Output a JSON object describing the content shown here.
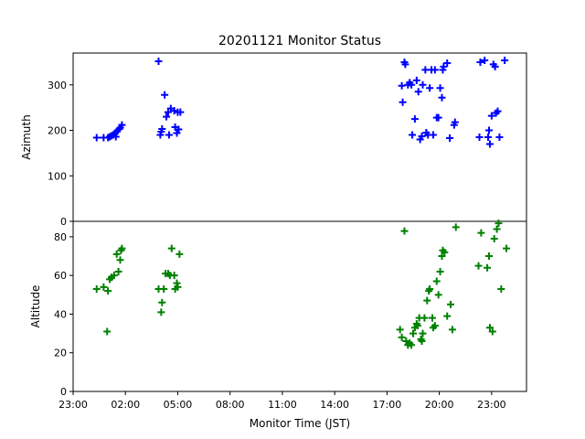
{
  "chart_data": {
    "type": "scatter",
    "title": "20201121 Monitor Status",
    "xlabel": "Monitor Time (JST)",
    "x_unit": "hours since 23:00",
    "xlim": [
      0,
      26
    ],
    "x_ticks": [
      {
        "value": 0,
        "label": "23:00"
      },
      {
        "value": 3,
        "label": "02:00"
      },
      {
        "value": 6,
        "label": "05:00"
      },
      {
        "value": 9,
        "label": "08:00"
      },
      {
        "value": 12,
        "label": "11:00"
      },
      {
        "value": 15,
        "label": "14:00"
      },
      {
        "value": 18,
        "label": "17:00"
      },
      {
        "value": 21,
        "label": "20:00"
      },
      {
        "value": 24,
        "label": "23:00"
      }
    ],
    "panels": [
      {
        "name": "azimuth",
        "ylabel": "Azimuth",
        "ylim": [
          0,
          370
        ],
        "y_ticks": [
          0,
          100,
          200,
          300
        ],
        "marker": "+",
        "color": "#0000ff",
        "points": [
          [
            1.35,
            184
          ],
          [
            1.75,
            184
          ],
          [
            2.0,
            184
          ],
          [
            2.1,
            186
          ],
          [
            2.2,
            188
          ],
          [
            2.3,
            190
          ],
          [
            2.4,
            193
          ],
          [
            2.45,
            186
          ],
          [
            2.5,
            197
          ],
          [
            2.55,
            200
          ],
          [
            2.65,
            203
          ],
          [
            2.7,
            206
          ],
          [
            2.8,
            212
          ],
          [
            4.9,
            352
          ],
          [
            5.0,
            190
          ],
          [
            5.05,
            197
          ],
          [
            5.1,
            203
          ],
          [
            5.25,
            278
          ],
          [
            5.35,
            230
          ],
          [
            5.45,
            240
          ],
          [
            5.5,
            190
          ],
          [
            5.6,
            248
          ],
          [
            5.8,
            243
          ],
          [
            5.85,
            207
          ],
          [
            5.95,
            194
          ],
          [
            6.0,
            240
          ],
          [
            6.05,
            202
          ],
          [
            6.15,
            240
          ],
          [
            18.85,
            298
          ],
          [
            18.9,
            262
          ],
          [
            19.0,
            350
          ],
          [
            19.05,
            345
          ],
          [
            19.2,
            300
          ],
          [
            19.3,
            305
          ],
          [
            19.4,
            300
          ],
          [
            19.45,
            190
          ],
          [
            19.6,
            225
          ],
          [
            19.7,
            310
          ],
          [
            19.8,
            285
          ],
          [
            19.9,
            180
          ],
          [
            20.0,
            187
          ],
          [
            20.05,
            300
          ],
          [
            20.2,
            333
          ],
          [
            20.25,
            195
          ],
          [
            20.35,
            190
          ],
          [
            20.45,
            293
          ],
          [
            20.55,
            333
          ],
          [
            20.65,
            190
          ],
          [
            20.75,
            333
          ],
          [
            20.85,
            228
          ],
          [
            20.95,
            228
          ],
          [
            21.05,
            293
          ],
          [
            21.15,
            272
          ],
          [
            21.2,
            333
          ],
          [
            21.25,
            340
          ],
          [
            21.45,
            348
          ],
          [
            21.6,
            183
          ],
          [
            21.85,
            212
          ],
          [
            21.9,
            218
          ],
          [
            23.3,
            185
          ],
          [
            23.35,
            350
          ],
          [
            23.6,
            354
          ],
          [
            23.8,
            185
          ],
          [
            23.85,
            200
          ],
          [
            23.9,
            170
          ],
          [
            24.0,
            232
          ],
          [
            24.1,
            345
          ],
          [
            24.2,
            340
          ],
          [
            24.25,
            238
          ],
          [
            24.35,
            242
          ],
          [
            24.45,
            185
          ],
          [
            24.75,
            354
          ]
        ]
      },
      {
        "name": "altitude",
        "ylabel": "Altitude",
        "ylim": [
          0,
          88
        ],
        "y_ticks": [
          0,
          20,
          40,
          60,
          80
        ],
        "marker": "+",
        "color": "#008000",
        "points": [
          [
            1.35,
            53
          ],
          [
            1.75,
            54
          ],
          [
            1.95,
            31
          ],
          [
            2.0,
            52
          ],
          [
            2.1,
            58
          ],
          [
            2.2,
            59
          ],
          [
            2.35,
            60
          ],
          [
            2.5,
            71
          ],
          [
            2.6,
            62
          ],
          [
            2.7,
            68
          ],
          [
            2.75,
            73
          ],
          [
            2.8,
            74
          ],
          [
            4.9,
            53
          ],
          [
            5.05,
            41
          ],
          [
            5.1,
            46
          ],
          [
            5.2,
            53
          ],
          [
            5.3,
            61
          ],
          [
            5.45,
            61
          ],
          [
            5.55,
            60
          ],
          [
            5.65,
            74
          ],
          [
            5.8,
            60
          ],
          [
            5.85,
            53
          ],
          [
            5.95,
            56
          ],
          [
            6.0,
            54
          ],
          [
            6.1,
            71
          ],
          [
            18.75,
            32
          ],
          [
            18.85,
            28
          ],
          [
            19.0,
            83
          ],
          [
            19.1,
            26
          ],
          [
            19.2,
            24
          ],
          [
            19.3,
            25
          ],
          [
            19.4,
            24
          ],
          [
            19.5,
            30
          ],
          [
            19.6,
            33
          ],
          [
            19.7,
            35
          ],
          [
            19.75,
            34
          ],
          [
            19.85,
            38
          ],
          [
            19.95,
            27
          ],
          [
            20.0,
            26
          ],
          [
            20.05,
            30
          ],
          [
            20.15,
            38
          ],
          [
            20.3,
            47
          ],
          [
            20.4,
            52
          ],
          [
            20.45,
            53
          ],
          [
            20.6,
            38
          ],
          [
            20.65,
            33
          ],
          [
            20.75,
            34
          ],
          [
            20.85,
            57
          ],
          [
            20.95,
            50
          ],
          [
            21.05,
            62
          ],
          [
            21.15,
            70
          ],
          [
            21.2,
            73
          ],
          [
            21.3,
            72
          ],
          [
            21.45,
            39
          ],
          [
            21.65,
            45
          ],
          [
            21.75,
            32
          ],
          [
            21.95,
            85
          ],
          [
            23.25,
            65
          ],
          [
            23.4,
            82
          ],
          [
            23.75,
            64
          ],
          [
            23.85,
            70
          ],
          [
            23.9,
            33
          ],
          [
            24.05,
            31
          ],
          [
            24.15,
            79
          ],
          [
            24.3,
            84
          ],
          [
            24.4,
            87
          ],
          [
            24.55,
            53
          ],
          [
            24.85,
            74
          ]
        ]
      }
    ]
  }
}
